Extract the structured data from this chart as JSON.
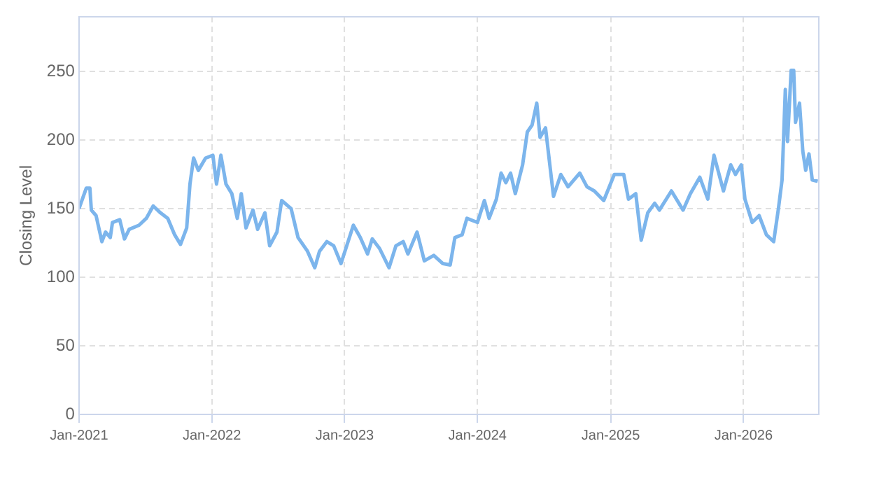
{
  "chart_data": {
    "type": "line",
    "ylabel": "Closing Level",
    "x": [
      "2021-01-01",
      "2021-01-21",
      "2021-01-31",
      "2021-02-04",
      "2021-02-17",
      "2021-03-05",
      "2021-03-15",
      "2021-03-28",
      "2021-04-03",
      "2021-04-23",
      "2021-05-06",
      "2021-05-19",
      "2021-06-15",
      "2021-07-05",
      "2021-07-24",
      "2021-08-13",
      "2021-09-02",
      "2021-09-21",
      "2021-10-07",
      "2021-10-24",
      "2021-11-02",
      "2021-11-12",
      "2021-11-25",
      "2021-12-15",
      "2022-01-04",
      "2022-01-14",
      "2022-01-26",
      "2022-02-09",
      "2022-02-25",
      "2022-03-12",
      "2022-03-23",
      "2022-04-05",
      "2022-04-24",
      "2022-05-07",
      "2022-05-27",
      "2022-06-09",
      "2022-06-29",
      "2022-07-12",
      "2022-08-07",
      "2022-08-26",
      "2022-09-21",
      "2022-10-11",
      "2022-10-24",
      "2022-11-13",
      "2022-12-02",
      "2022-12-22",
      "2023-01-25",
      "2023-02-13",
      "2023-03-05",
      "2023-03-18",
      "2023-04-07",
      "2023-05-03",
      "2023-05-22",
      "2023-06-11",
      "2023-06-24",
      "2023-07-19",
      "2023-08-08",
      "2023-09-03",
      "2023-09-28",
      "2023-10-18",
      "2023-10-31",
      "2023-11-20",
      "2023-12-03",
      "2024-01-01",
      "2024-01-20",
      "2024-02-02",
      "2024-02-22",
      "2024-03-06",
      "2024-03-19",
      "2024-04-01",
      "2024-04-14",
      "2024-05-04",
      "2024-05-17",
      "2024-05-30",
      "2024-06-12",
      "2024-06-21",
      "2024-07-06",
      "2024-07-28",
      "2024-08-17",
      "2024-09-06",
      "2024-10-08",
      "2024-10-28",
      "2024-11-17",
      "2024-12-13",
      "2025-01-11",
      "2025-02-06",
      "2025-02-19",
      "2025-03-11",
      "2025-03-26",
      "2025-04-13",
      "2025-05-02",
      "2025-05-15",
      "2025-06-17",
      "2025-07-19",
      "2025-08-08",
      "2025-09-03",
      "2025-09-25",
      "2025-10-12",
      "2025-11-07",
      "2025-11-27",
      "2025-12-10",
      "2025-12-26",
      "2026-01-05",
      "2026-01-25",
      "2026-02-13",
      "2026-03-05",
      "2026-03-25",
      "2026-04-07",
      "2026-04-17",
      "2026-04-26",
      "2026-05-02",
      "2026-05-12",
      "2026-05-19",
      "2026-05-24",
      "2026-06-04",
      "2026-06-13",
      "2026-06-21",
      "2026-06-30",
      "2026-07-09",
      "2026-07-24"
    ],
    "series": [
      {
        "color": "#7cb5ec",
        "values": [
          150,
          165,
          165,
          149,
          145,
          126,
          133,
          129,
          140,
          142,
          128,
          135,
          138,
          143,
          152,
          147,
          143,
          131,
          124,
          136,
          168,
          187,
          178,
          187,
          189,
          168,
          189,
          168,
          161,
          143,
          161,
          136,
          149,
          135,
          147,
          123,
          133,
          156,
          150,
          129,
          119,
          107,
          119,
          126,
          123,
          110,
          138,
          129,
          117,
          128,
          121,
          107,
          123,
          126,
          117,
          133,
          112,
          116,
          110,
          109,
          129,
          131,
          143,
          140,
          156,
          143,
          157,
          176,
          169,
          176,
          161,
          182,
          206,
          211,
          227,
          202,
          209,
          159,
          175,
          166,
          176,
          166,
          163,
          156,
          175,
          175,
          157,
          161,
          127,
          147,
          154,
          149,
          163,
          149,
          161,
          173,
          157,
          189,
          163,
          182,
          175,
          182,
          157,
          140,
          145,
          131,
          126,
          150,
          171,
          237,
          199,
          251,
          251,
          213,
          227,
          192,
          178,
          190,
          171,
          170
        ]
      }
    ],
    "xlim": [
      "2021-01-01",
      "2026-07-27"
    ],
    "xticks": [
      {
        "value": "2021-01-01",
        "label": "Jan-2021"
      },
      {
        "value": "2022-01-01",
        "label": "Jan-2022"
      },
      {
        "value": "2023-01-01",
        "label": "Jan-2023"
      },
      {
        "value": "2024-01-01",
        "label": "Jan-2024"
      },
      {
        "value": "2025-01-01",
        "label": "Jan-2025"
      },
      {
        "value": "2026-01-01",
        "label": "Jan-2026"
      }
    ],
    "ylim": [
      0,
      290
    ],
    "yticks": [
      0,
      50,
      100,
      150,
      200,
      250
    ],
    "grid": true,
    "legend": false,
    "marker": "none",
    "line_style": "solid"
  }
}
